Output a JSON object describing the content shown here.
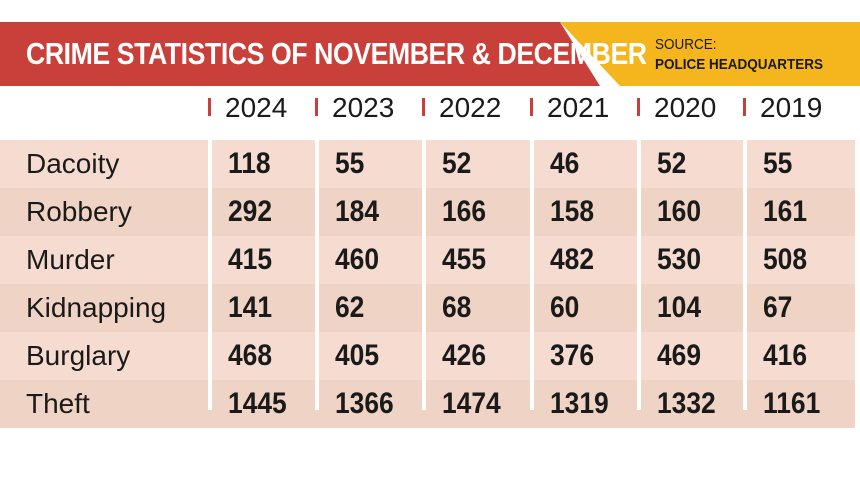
{
  "header": {
    "title": "CRIME STATISTICS OF NOVEMBER & DECEMBER",
    "source_label": "SOURCE:",
    "source_value": "POLICE HEADQUARTERS"
  },
  "colors": {
    "banner_red": "#c9403a",
    "banner_yellow": "#f5b51c",
    "row_light": "#f6dcd0",
    "row_dark": "#efd3c5",
    "tick_red": "#c9403a"
  },
  "chart_data": {
    "type": "table",
    "title": "CRIME STATISTICS OF NOVEMBER & DECEMBER",
    "columns": [
      "2024",
      "2023",
      "2022",
      "2021",
      "2020",
      "2019"
    ],
    "rows": [
      {
        "label": "Dacoity",
        "values": [
          118,
          55,
          52,
          46,
          52,
          55
        ]
      },
      {
        "label": "Robbery",
        "values": [
          292,
          184,
          166,
          158,
          160,
          161
        ]
      },
      {
        "label": "Murder",
        "values": [
          415,
          460,
          455,
          482,
          530,
          508
        ]
      },
      {
        "label": "Kidnapping",
        "values": [
          141,
          62,
          68,
          60,
          104,
          67
        ]
      },
      {
        "label": "Burglary",
        "values": [
          468,
          405,
          426,
          376,
          469,
          416
        ]
      },
      {
        "label": "Theft",
        "values": [
          1445,
          1366,
          1474,
          1319,
          1332,
          1161
        ]
      }
    ]
  }
}
